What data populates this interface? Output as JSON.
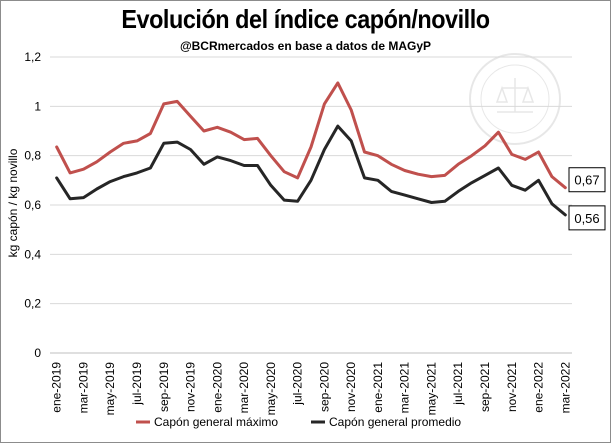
{
  "title": "Evolución del índice capón/novillo",
  "subtitle": "@BCRmercados en base a datos de MAGyP",
  "chart_data": {
    "type": "line",
    "title": "Evolución del índice capón/novillo",
    "subtitle": "@BCRmercados en base a datos de MAGyP",
    "ylabel": "kg capón / kg novillo",
    "xlabel": "",
    "ylim": [
      0,
      1.2
    ],
    "yticks": [
      "0",
      "0,2",
      "0,4",
      "0,6",
      "0,8",
      "1",
      "1,2"
    ],
    "grid": true,
    "legend_position": "bottom",
    "x_tick_labels": [
      "ene-2019",
      "mar-2019",
      "may-2019",
      "jul-2019",
      "sep-2019",
      "nov-2019",
      "ene-2020",
      "mar-2020",
      "may-2020",
      "jul-2020",
      "sep-2020",
      "nov-2020",
      "ene-2021",
      "mar-2021",
      "may-2021",
      "jul-2021",
      "sep-2021",
      "nov-2021",
      "ene-2022",
      "mar-2022"
    ],
    "categories": [
      "ene-2019",
      "feb-2019",
      "mar-2019",
      "abr-2019",
      "may-2019",
      "jun-2019",
      "jul-2019",
      "ago-2019",
      "sep-2019",
      "oct-2019",
      "nov-2019",
      "dic-2019",
      "ene-2020",
      "feb-2020",
      "mar-2020",
      "abr-2020",
      "may-2020",
      "jun-2020",
      "jul-2020",
      "ago-2020",
      "sep-2020",
      "oct-2020",
      "nov-2020",
      "dic-2020",
      "ene-2021",
      "feb-2021",
      "mar-2021",
      "abr-2021",
      "may-2021",
      "jun-2021",
      "jul-2021",
      "ago-2021",
      "sep-2021",
      "oct-2021",
      "nov-2021",
      "dic-2021",
      "ene-2022",
      "feb-2022",
      "mar-2022"
    ],
    "series": [
      {
        "name": "Capón general máximo",
        "color": "#c0504d",
        "values": [
          0.835,
          0.73,
          0.745,
          0.775,
          0.815,
          0.85,
          0.86,
          0.89,
          1.01,
          1.02,
          0.96,
          0.9,
          0.915,
          0.895,
          0.865,
          0.87,
          0.8,
          0.735,
          0.71,
          0.835,
          1.01,
          1.095,
          0.985,
          0.815,
          0.8,
          0.765,
          0.74,
          0.725,
          0.715,
          0.72,
          0.765,
          0.8,
          0.84,
          0.895,
          0.805,
          0.785,
          0.815,
          0.715,
          0.67
        ],
        "end_label": "0,67"
      },
      {
        "name": "Capón general promedio",
        "color": "#262626",
        "values": [
          0.71,
          0.625,
          0.63,
          0.665,
          0.695,
          0.715,
          0.73,
          0.75,
          0.85,
          0.855,
          0.825,
          0.765,
          0.795,
          0.78,
          0.76,
          0.76,
          0.68,
          0.62,
          0.615,
          0.7,
          0.825,
          0.92,
          0.86,
          0.71,
          0.7,
          0.655,
          0.64,
          0.625,
          0.61,
          0.615,
          0.655,
          0.69,
          0.72,
          0.75,
          0.68,
          0.66,
          0.7,
          0.605,
          0.56
        ],
        "end_label": "0,56"
      }
    ]
  }
}
